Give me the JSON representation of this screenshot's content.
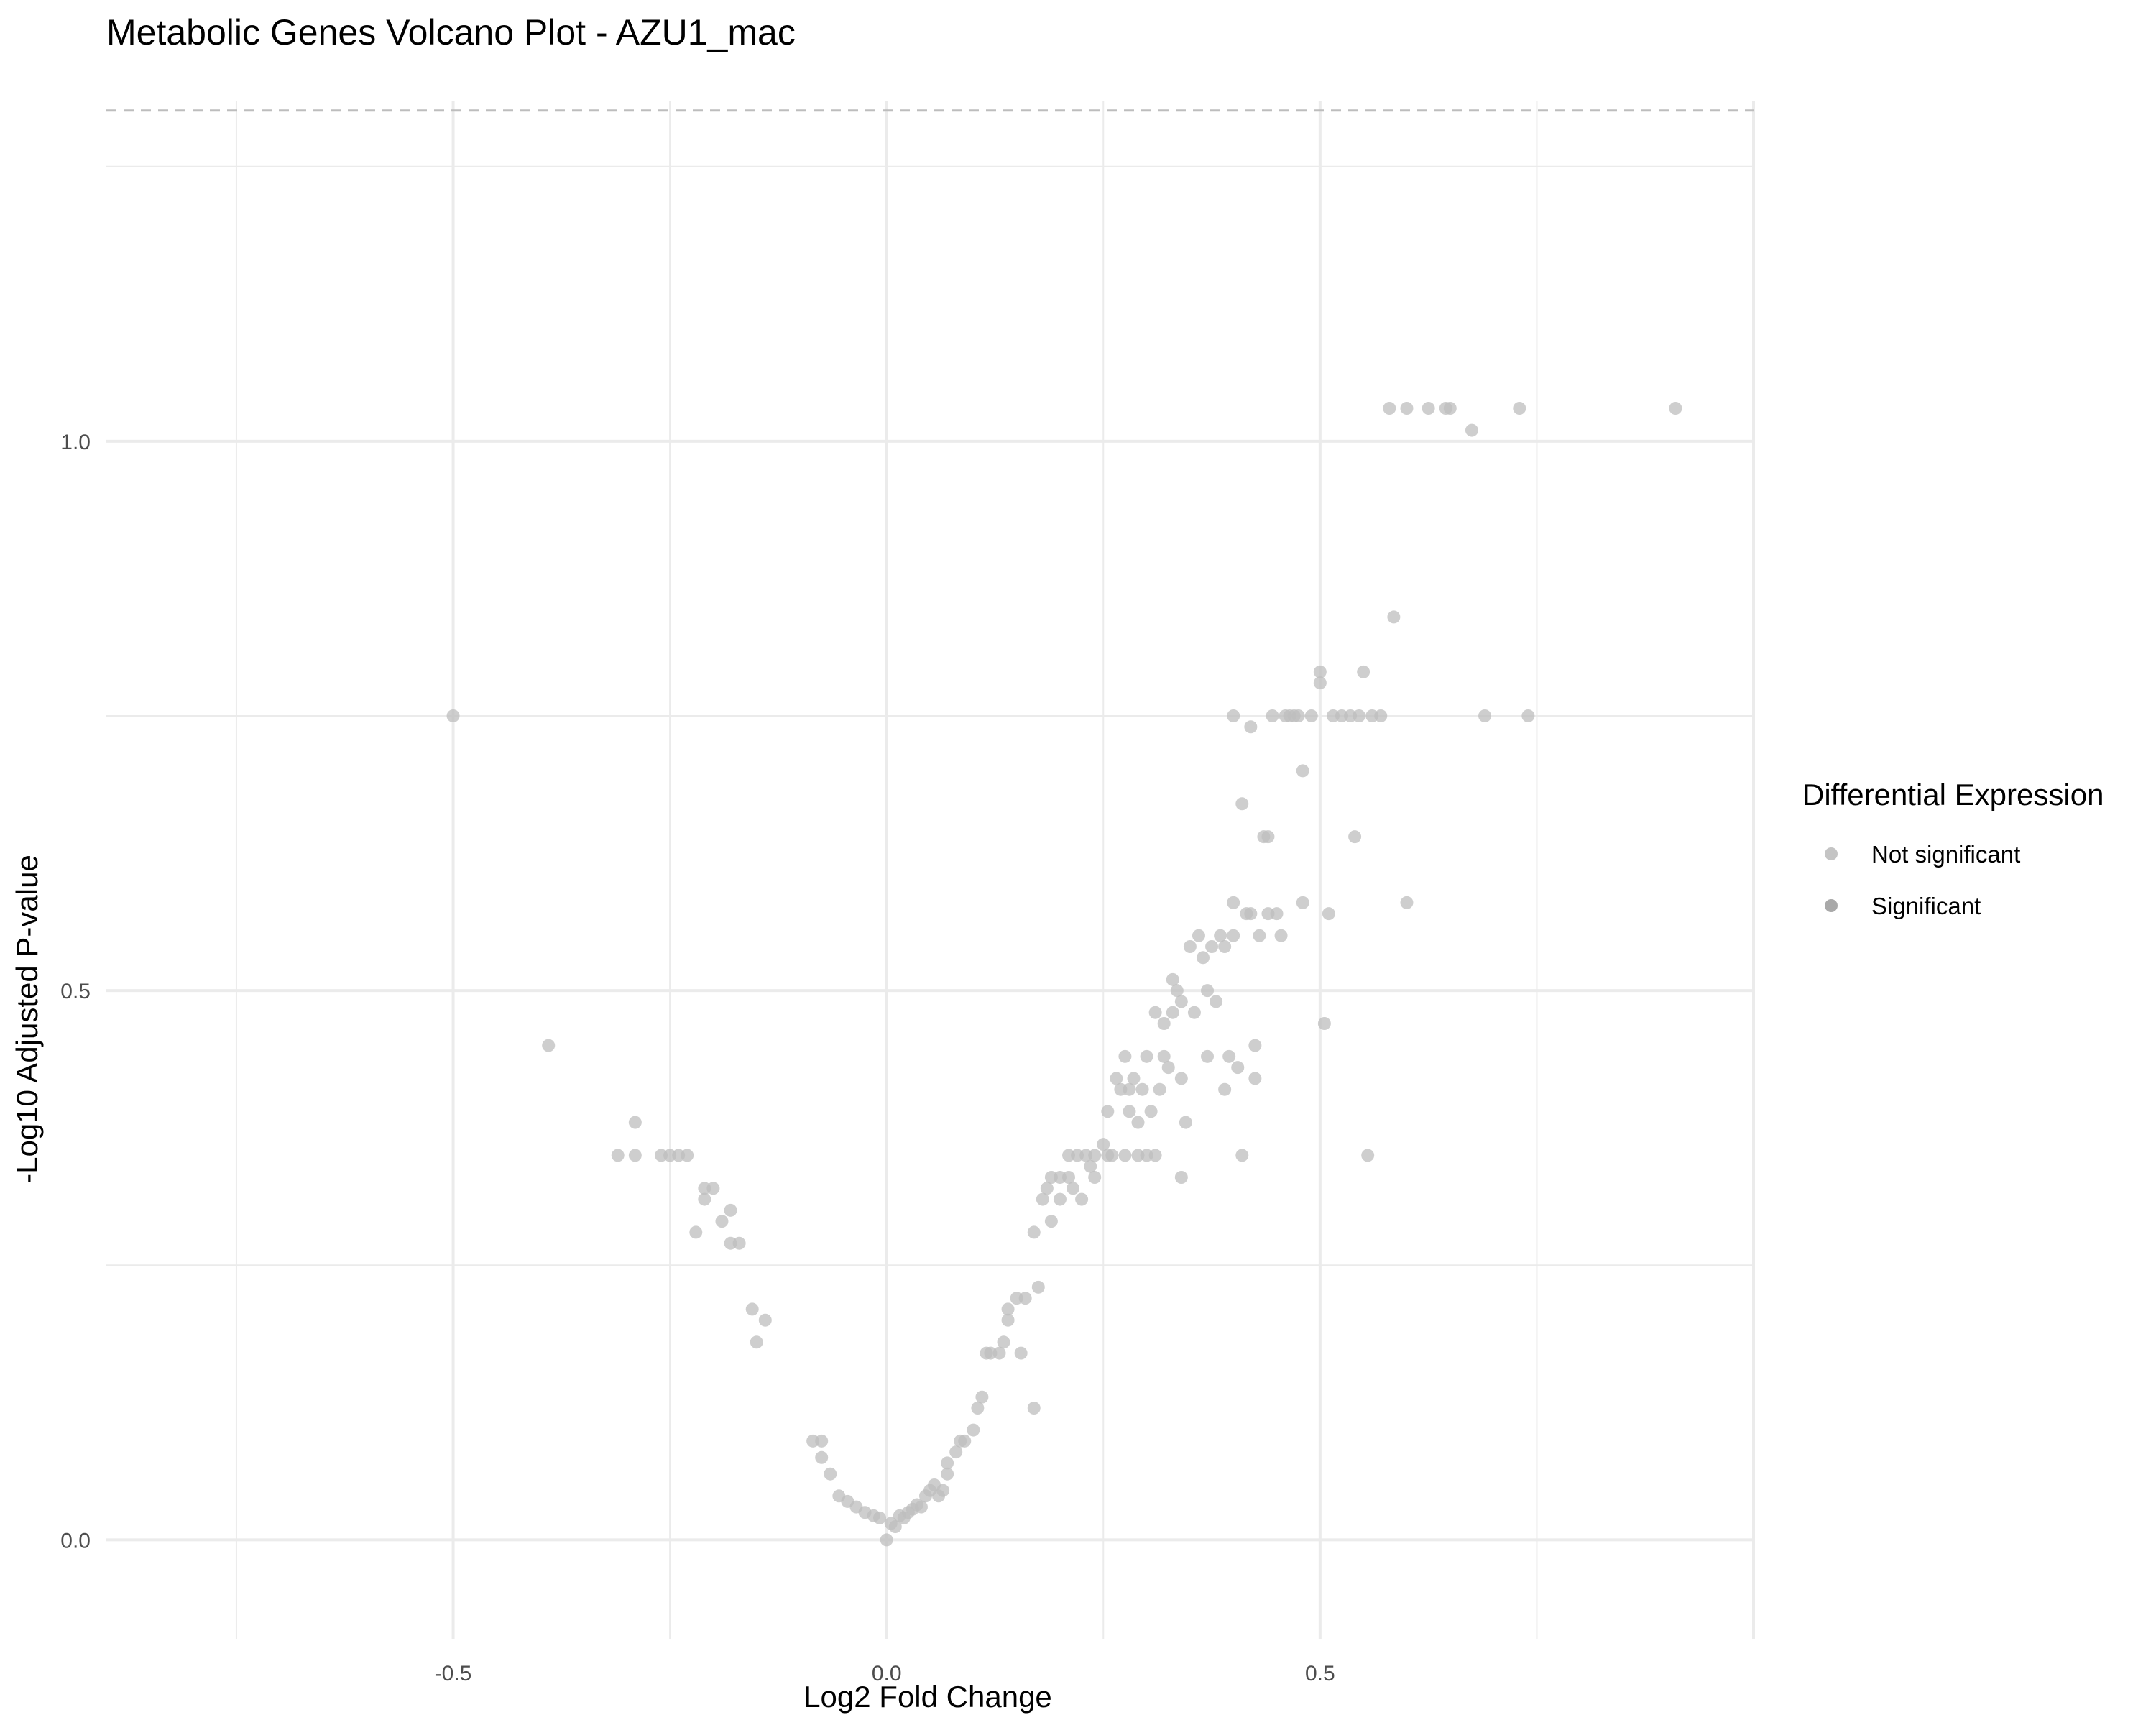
{
  "chart_data": {
    "type": "scatter",
    "title": "Metabolic Genes Volcano Plot - AZU1_mac",
    "xlabel": "Log2 Fold Change",
    "ylabel": "-Log10 Adjusted P-value",
    "xlim": [
      -0.9,
      1.0
    ],
    "ylim": [
      -0.09,
      1.31
    ],
    "x_ticks": [
      -0.5,
      0.0,
      0.5
    ],
    "x_tick_labels": [
      "-0.5",
      "0.0",
      "0.5"
    ],
    "y_ticks": [
      0.0,
      0.5,
      1.0
    ],
    "y_tick_labels": [
      "0.0",
      "0.5",
      "1.0"
    ],
    "grid": true,
    "threshold_line_y": 1.301,
    "colors": {
      "not_significant": "#bebebe",
      "significant": "#a0a0a0",
      "threshold": "#bdbdbd"
    },
    "legend": {
      "title": "Differential Expression",
      "position": "right",
      "entries": [
        "Not significant",
        "Significant"
      ]
    },
    "series": [
      {
        "name": "Not significant",
        "points": [
          [
            -0.5,
            0.75
          ],
          [
            -0.39,
            0.45
          ],
          [
            -0.31,
            0.35
          ],
          [
            -0.29,
            0.35
          ],
          [
            -0.29,
            0.38
          ],
          [
            -0.26,
            0.35
          ],
          [
            -0.25,
            0.35
          ],
          [
            -0.24,
            0.35
          ],
          [
            -0.23,
            0.35
          ],
          [
            -0.22,
            0.28
          ],
          [
            -0.21,
            0.32
          ],
          [
            -0.21,
            0.31
          ],
          [
            -0.2,
            0.32
          ],
          [
            -0.19,
            0.29
          ],
          [
            -0.18,
            0.27
          ],
          [
            -0.18,
            0.3
          ],
          [
            -0.17,
            0.27
          ],
          [
            -0.155,
            0.21
          ],
          [
            -0.15,
            0.18
          ],
          [
            -0.14,
            0.2
          ],
          [
            -0.085,
            0.09
          ],
          [
            -0.075,
            0.09
          ],
          [
            -0.075,
            0.075
          ],
          [
            -0.065,
            0.06
          ],
          [
            -0.055,
            0.04
          ],
          [
            -0.045,
            0.035
          ],
          [
            -0.035,
            0.03
          ],
          [
            -0.025,
            0.025
          ],
          [
            -0.015,
            0.022
          ],
          [
            -0.008,
            0.02
          ],
          [
            0.0,
            0.0
          ],
          [
            0.005,
            0.015
          ],
          [
            0.01,
            0.012
          ],
          [
            0.015,
            0.022
          ],
          [
            0.02,
            0.02
          ],
          [
            0.025,
            0.025
          ],
          [
            0.03,
            0.028
          ],
          [
            0.035,
            0.032
          ],
          [
            0.04,
            0.03
          ],
          [
            0.045,
            0.04
          ],
          [
            0.05,
            0.045
          ],
          [
            0.055,
            0.05
          ],
          [
            0.06,
            0.04
          ],
          [
            0.065,
            0.045
          ],
          [
            0.07,
            0.06
          ],
          [
            0.07,
            0.07
          ],
          [
            0.08,
            0.08
          ],
          [
            0.085,
            0.09
          ],
          [
            0.09,
            0.09
          ],
          [
            0.1,
            0.1
          ],
          [
            0.105,
            0.12
          ],
          [
            0.11,
            0.13
          ],
          [
            0.115,
            0.17
          ],
          [
            0.12,
            0.17
          ],
          [
            0.13,
            0.17
          ],
          [
            0.135,
            0.18
          ],
          [
            0.14,
            0.2
          ],
          [
            0.14,
            0.21
          ],
          [
            0.15,
            0.22
          ],
          [
            0.155,
            0.17
          ],
          [
            0.16,
            0.22
          ],
          [
            0.17,
            0.12
          ],
          [
            0.17,
            0.28
          ],
          [
            0.175,
            0.23
          ],
          [
            0.18,
            0.31
          ],
          [
            0.185,
            0.32
          ],
          [
            0.19,
            0.33
          ],
          [
            0.19,
            0.29
          ],
          [
            0.2,
            0.31
          ],
          [
            0.2,
            0.33
          ],
          [
            0.21,
            0.35
          ],
          [
            0.21,
            0.33
          ],
          [
            0.215,
            0.32
          ],
          [
            0.22,
            0.35
          ],
          [
            0.225,
            0.31
          ],
          [
            0.23,
            0.35
          ],
          [
            0.235,
            0.34
          ],
          [
            0.24,
            0.33
          ],
          [
            0.24,
            0.35
          ],
          [
            0.25,
            0.36
          ],
          [
            0.255,
            0.35
          ],
          [
            0.255,
            0.39
          ],
          [
            0.26,
            0.35
          ],
          [
            0.265,
            0.42
          ],
          [
            0.27,
            0.41
          ],
          [
            0.275,
            0.44
          ],
          [
            0.275,
            0.35
          ],
          [
            0.28,
            0.39
          ],
          [
            0.28,
            0.41
          ],
          [
            0.285,
            0.42
          ],
          [
            0.29,
            0.38
          ],
          [
            0.29,
            0.35
          ],
          [
            0.295,
            0.41
          ],
          [
            0.3,
            0.44
          ],
          [
            0.3,
            0.35
          ],
          [
            0.305,
            0.39
          ],
          [
            0.31,
            0.48
          ],
          [
            0.31,
            0.35
          ],
          [
            0.315,
            0.41
          ],
          [
            0.32,
            0.47
          ],
          [
            0.32,
            0.44
          ],
          [
            0.325,
            0.43
          ],
          [
            0.33,
            0.51
          ],
          [
            0.33,
            0.48
          ],
          [
            0.335,
            0.5
          ],
          [
            0.34,
            0.49
          ],
          [
            0.34,
            0.42
          ],
          [
            0.34,
            0.33
          ],
          [
            0.345,
            0.38
          ],
          [
            0.35,
            0.54
          ],
          [
            0.355,
            0.48
          ],
          [
            0.36,
            0.55
          ],
          [
            0.365,
            0.53
          ],
          [
            0.37,
            0.5
          ],
          [
            0.37,
            0.44
          ],
          [
            0.375,
            0.54
          ],
          [
            0.38,
            0.49
          ],
          [
            0.385,
            0.55
          ],
          [
            0.39,
            0.54
          ],
          [
            0.39,
            0.41
          ],
          [
            0.395,
            0.44
          ],
          [
            0.4,
            0.58
          ],
          [
            0.4,
            0.55
          ],
          [
            0.4,
            0.75
          ],
          [
            0.405,
            0.43
          ],
          [
            0.41,
            0.67
          ],
          [
            0.41,
            0.35
          ],
          [
            0.415,
            0.57
          ],
          [
            0.42,
            0.57
          ],
          [
            0.42,
            0.74
          ],
          [
            0.425,
            0.45
          ],
          [
            0.425,
            0.42
          ],
          [
            0.43,
            0.55
          ],
          [
            0.435,
            0.64
          ],
          [
            0.44,
            0.57
          ],
          [
            0.44,
            0.64
          ],
          [
            0.445,
            0.75
          ],
          [
            0.45,
            0.57
          ],
          [
            0.455,
            0.55
          ],
          [
            0.46,
            0.75
          ],
          [
            0.465,
            0.75
          ],
          [
            0.47,
            0.75
          ],
          [
            0.475,
            0.75
          ],
          [
            0.48,
            0.7
          ],
          [
            0.48,
            0.58
          ],
          [
            0.49,
            0.75
          ],
          [
            0.5,
            0.79
          ],
          [
            0.5,
            0.78
          ],
          [
            0.505,
            0.47
          ],
          [
            0.51,
            0.57
          ],
          [
            0.515,
            0.75
          ],
          [
            0.525,
            0.75
          ],
          [
            0.535,
            0.75
          ],
          [
            0.54,
            0.64
          ],
          [
            0.545,
            0.75
          ],
          [
            0.55,
            0.79
          ],
          [
            0.555,
            0.35
          ],
          [
            0.56,
            0.75
          ],
          [
            0.57,
            0.75
          ],
          [
            0.585,
            0.84
          ],
          [
            0.58,
            1.03
          ],
          [
            0.6,
            1.03
          ],
          [
            0.6,
            0.58
          ],
          [
            0.625,
            1.03
          ],
          [
            0.645,
            1.03
          ],
          [
            0.65,
            1.03
          ],
          [
            0.675,
            1.01
          ],
          [
            0.69,
            0.75
          ],
          [
            0.73,
            1.03
          ],
          [
            0.74,
            0.75
          ],
          [
            0.91,
            1.03
          ]
        ]
      },
      {
        "name": "Significant",
        "points": []
      }
    ]
  }
}
